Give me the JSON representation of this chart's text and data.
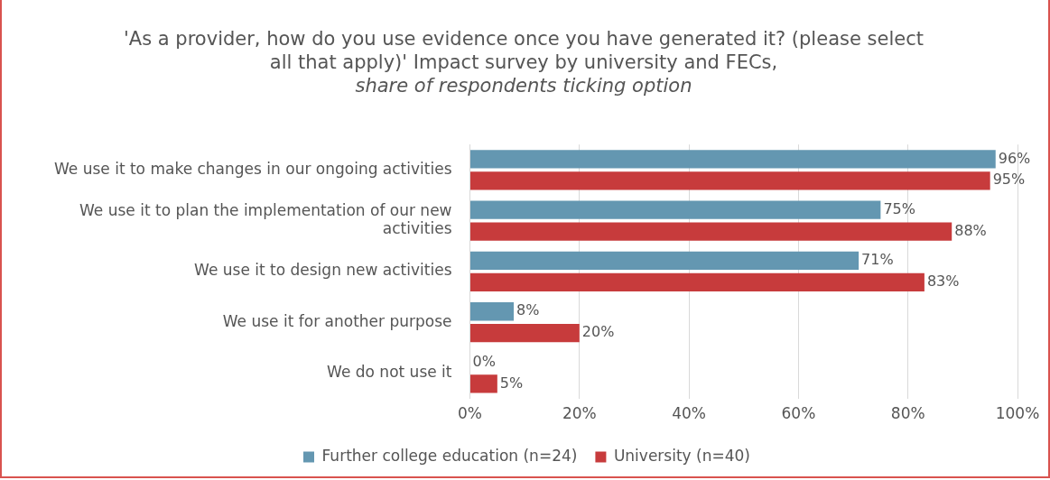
{
  "chart_data": {
    "type": "bar",
    "orientation": "horizontal",
    "title": "'As a provider, how do you use evidence once you have generated it? (please select all that apply)' Impact survey by university and FECs,",
    "subtitle": "share of respondents ticking option",
    "categories": [
      "We use it to make changes in our ongoing activities",
      "We use it to plan the implementation of our new activities",
      "We use it to design new activities",
      "We use it for another purpose",
      "We do not use it"
    ],
    "series": [
      {
        "name": "Further college education (n=24)",
        "color": "#6497b1",
        "values": [
          96,
          75,
          71,
          8,
          0
        ],
        "value_labels": [
          "96%",
          "75%",
          "71%",
          "8%",
          "0%"
        ]
      },
      {
        "name": "University (n=40)",
        "color": "#c73b3c",
        "values": [
          95,
          88,
          83,
          20,
          5
        ],
        "value_labels": [
          "95%",
          "88%",
          "83%",
          "20%",
          "5%"
        ]
      }
    ],
    "xlim": [
      0,
      100
    ],
    "xticks": [
      {
        "value": 0,
        "label": "0%"
      },
      {
        "value": 20,
        "label": "20%"
      },
      {
        "value": 40,
        "label": "40%"
      },
      {
        "value": 60,
        "label": "60%"
      },
      {
        "value": 80,
        "label": "80%"
      },
      {
        "value": 100,
        "label": "100%"
      }
    ],
    "grid": "x",
    "legend": "bottom"
  }
}
